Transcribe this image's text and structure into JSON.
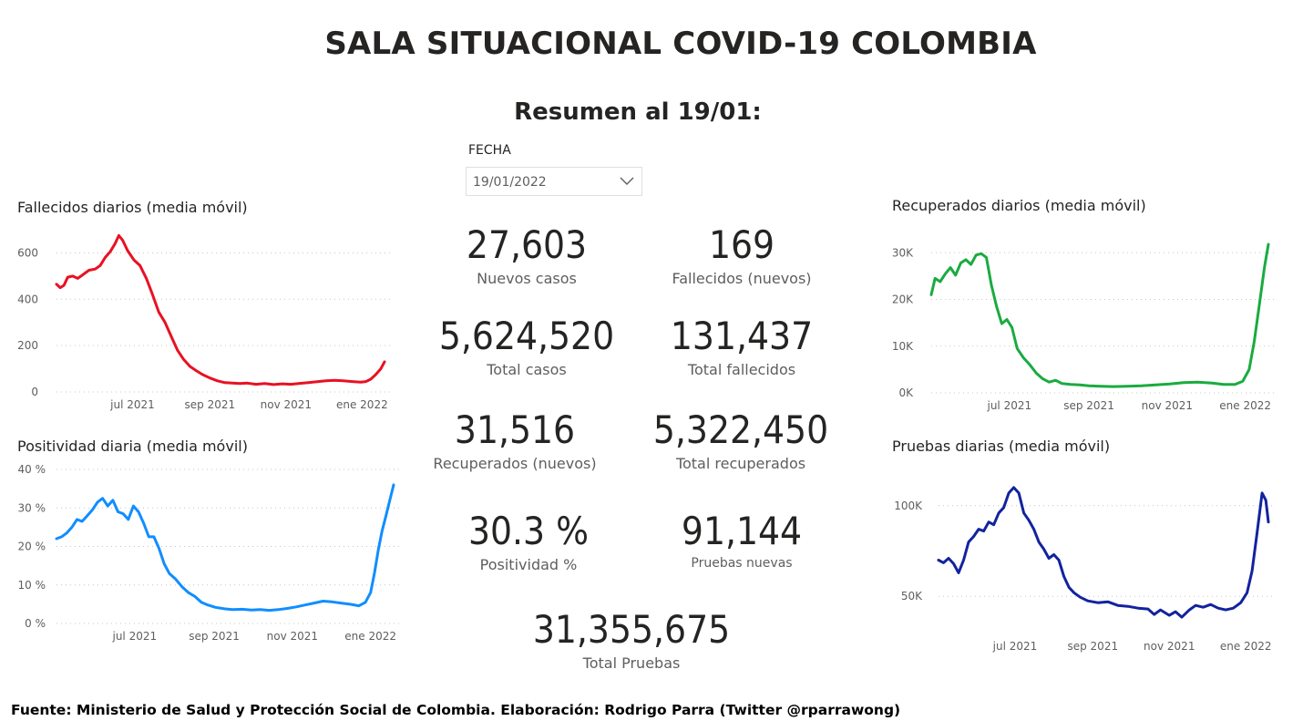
{
  "header": {
    "title": "SALA SITUACIONAL COVID-19 COLOMBIA",
    "subtitle": "Resumen al 19/01:"
  },
  "slicer": {
    "label": "FECHA",
    "value": "19/01/2022"
  },
  "kpis": {
    "nuevos_casos": {
      "value": "27,603",
      "label": "Nuevos casos"
    },
    "fallecidos_nuevos": {
      "value": "169",
      "label": "Fallecidos (nuevos)"
    },
    "total_casos": {
      "value": "5,624,520",
      "label": "Total casos"
    },
    "total_fallecidos": {
      "value": "131,437",
      "label": "Total fallecidos"
    },
    "recuperados_nuevos": {
      "value": "31,516",
      "label": "Recuperados (nuevos)"
    },
    "total_recuperados": {
      "value": "5,322,450",
      "label": "Total recuperados"
    },
    "positividad": {
      "value": "30.3 %",
      "label": "Positividad %"
    },
    "pruebas_nuevas": {
      "value": "91,144",
      "label": "Pruebas nuevas"
    },
    "total_pruebas": {
      "value": "31,355,675",
      "label": "Total Pruebas"
    }
  },
  "footer": "Fuente: Ministerio de Salud y Protección Social de Colombia. Elaboración: Rodrigo Parra (Twitter @rparrawong)",
  "chart_data": [
    {
      "id": "fallecidos",
      "type": "line",
      "title": "Fallecidos diarios (media móvil)",
      "color": "#e81123",
      "ylim": [
        0,
        700
      ],
      "yticks": [
        {
          "v": 0,
          "label": "0"
        },
        {
          "v": 200,
          "label": "200"
        },
        {
          "v": 400,
          "label": "400"
        },
        {
          "v": 600,
          "label": "600"
        }
      ],
      "xlim": [
        "2021-05-01",
        "2022-01-19"
      ],
      "xticks": [
        {
          "date": "2021-07-01",
          "label": "jul 2021"
        },
        {
          "date": "2021-09-01",
          "label": "sep 2021"
        },
        {
          "date": "2021-11-01",
          "label": "nov 2021"
        },
        {
          "date": "2022-01-01",
          "label": "ene 2022"
        }
      ],
      "grid": true,
      "points": [
        [
          "2021-05-01",
          465
        ],
        [
          "2021-05-04",
          450
        ],
        [
          "2021-05-07",
          460
        ],
        [
          "2021-05-10",
          495
        ],
        [
          "2021-05-14",
          500
        ],
        [
          "2021-05-18",
          490
        ],
        [
          "2021-05-22",
          505
        ],
        [
          "2021-05-27",
          525
        ],
        [
          "2021-06-01",
          530
        ],
        [
          "2021-06-05",
          545
        ],
        [
          "2021-06-09",
          580
        ],
        [
          "2021-06-13",
          605
        ],
        [
          "2021-06-17",
          640
        ],
        [
          "2021-06-20",
          675
        ],
        [
          "2021-06-23",
          655
        ],
        [
          "2021-06-27",
          610
        ],
        [
          "2021-07-02",
          570
        ],
        [
          "2021-07-07",
          545
        ],
        [
          "2021-07-12",
          490
        ],
        [
          "2021-07-17",
          420
        ],
        [
          "2021-07-22",
          345
        ],
        [
          "2021-07-27",
          300
        ],
        [
          "2021-08-01",
          240
        ],
        [
          "2021-08-06",
          180
        ],
        [
          "2021-08-11",
          140
        ],
        [
          "2021-08-16",
          110
        ],
        [
          "2021-08-21",
          92
        ],
        [
          "2021-08-26",
          75
        ],
        [
          "2021-09-01",
          60
        ],
        [
          "2021-09-07",
          48
        ],
        [
          "2021-09-13",
          40
        ],
        [
          "2021-09-19",
          38
        ],
        [
          "2021-09-25",
          36
        ],
        [
          "2021-10-01",
          38
        ],
        [
          "2021-10-08",
          33
        ],
        [
          "2021-10-15",
          36
        ],
        [
          "2021-10-22",
          32
        ],
        [
          "2021-10-29",
          35
        ],
        [
          "2021-11-05",
          33
        ],
        [
          "2021-11-12",
          37
        ],
        [
          "2021-11-19",
          40
        ],
        [
          "2021-11-26",
          44
        ],
        [
          "2021-12-03",
          48
        ],
        [
          "2021-12-10",
          50
        ],
        [
          "2021-12-17",
          48
        ],
        [
          "2021-12-24",
          45
        ],
        [
          "2021-12-31",
          42
        ],
        [
          "2022-01-04",
          45
        ],
        [
          "2022-01-08",
          55
        ],
        [
          "2022-01-12",
          75
        ],
        [
          "2022-01-16",
          100
        ],
        [
          "2022-01-19",
          130
        ]
      ]
    },
    {
      "id": "positividad",
      "type": "line",
      "title": "Positividad diaria (media móvil)",
      "color": "#118dff",
      "ylim": [
        0,
        40
      ],
      "yticks": [
        {
          "v": 0,
          "label": "0 %"
        },
        {
          "v": 10,
          "label": "10 %"
        },
        {
          "v": 20,
          "label": "20 %"
        },
        {
          "v": 30,
          "label": "30 %"
        },
        {
          "v": 40,
          "label": "40 %"
        }
      ],
      "xlim": [
        "2021-05-01",
        "2022-01-19"
      ],
      "xticks": [
        {
          "date": "2021-07-01",
          "label": "jul 2021"
        },
        {
          "date": "2021-09-01",
          "label": "sep 2021"
        },
        {
          "date": "2021-11-01",
          "label": "nov 2021"
        },
        {
          "date": "2022-01-01",
          "label": "ene 2022"
        }
      ],
      "grid": true,
      "points": [
        [
          "2021-05-01",
          22
        ],
        [
          "2021-05-05",
          22.5
        ],
        [
          "2021-05-09",
          23.5
        ],
        [
          "2021-05-13",
          25
        ],
        [
          "2021-05-17",
          27
        ],
        [
          "2021-05-21",
          26.5
        ],
        [
          "2021-05-25",
          28
        ],
        [
          "2021-05-29",
          29.5
        ],
        [
          "2021-06-02",
          31.5
        ],
        [
          "2021-06-06",
          32.5
        ],
        [
          "2021-06-10",
          30.5
        ],
        [
          "2021-06-14",
          32
        ],
        [
          "2021-06-18",
          29
        ],
        [
          "2021-06-22",
          28.5
        ],
        [
          "2021-06-26",
          27
        ],
        [
          "2021-06-30",
          30.5
        ],
        [
          "2021-07-04",
          29
        ],
        [
          "2021-07-08",
          26
        ],
        [
          "2021-07-12",
          22.5
        ],
        [
          "2021-07-16",
          22.5
        ],
        [
          "2021-07-20",
          19.5
        ],
        [
          "2021-07-24",
          15.5
        ],
        [
          "2021-07-28",
          13
        ],
        [
          "2021-08-02",
          11.5
        ],
        [
          "2021-08-07",
          9.5
        ],
        [
          "2021-08-12",
          8
        ],
        [
          "2021-08-17",
          7
        ],
        [
          "2021-08-22",
          5.5
        ],
        [
          "2021-08-27",
          4.8
        ],
        [
          "2021-09-02",
          4.2
        ],
        [
          "2021-09-09",
          3.8
        ],
        [
          "2021-09-16",
          3.6
        ],
        [
          "2021-09-23",
          3.7
        ],
        [
          "2021-09-30",
          3.5
        ],
        [
          "2021-10-07",
          3.6
        ],
        [
          "2021-10-14",
          3.4
        ],
        [
          "2021-10-21",
          3.6
        ],
        [
          "2021-10-28",
          3.9
        ],
        [
          "2021-11-04",
          4.3
        ],
        [
          "2021-11-11",
          4.8
        ],
        [
          "2021-11-18",
          5.3
        ],
        [
          "2021-11-25",
          5.8
        ],
        [
          "2021-12-02",
          5.6
        ],
        [
          "2021-12-09",
          5.3
        ],
        [
          "2021-12-16",
          5.0
        ],
        [
          "2021-12-23",
          4.6
        ],
        [
          "2021-12-28",
          5.5
        ],
        [
          "2022-01-01",
          8
        ],
        [
          "2022-01-04",
          13
        ],
        [
          "2022-01-07",
          19
        ],
        [
          "2022-01-10",
          24
        ],
        [
          "2022-01-13",
          28
        ],
        [
          "2022-01-16",
          32
        ],
        [
          "2022-01-19",
          36
        ]
      ]
    },
    {
      "id": "recuperados",
      "type": "line",
      "title": "Recuperados diarios (media móvil)",
      "color": "#1aab40",
      "ylim": [
        0,
        32000
      ],
      "yticks": [
        {
          "v": 0,
          "label": "0K"
        },
        {
          "v": 10000,
          "label": "10K"
        },
        {
          "v": 20000,
          "label": "20K"
        },
        {
          "v": 30000,
          "label": "30K"
        }
      ],
      "xlim": [
        "2021-05-01",
        "2022-01-19"
      ],
      "xticks": [
        {
          "date": "2021-07-01",
          "label": "jul 2021"
        },
        {
          "date": "2021-09-01",
          "label": "sep 2021"
        },
        {
          "date": "2021-11-01",
          "label": "nov 2021"
        },
        {
          "date": "2022-01-01",
          "label": "ene 2022"
        }
      ],
      "grid": true,
      "points": [
        [
          "2021-05-01",
          21000
        ],
        [
          "2021-05-04",
          24500
        ],
        [
          "2021-05-08",
          23800
        ],
        [
          "2021-05-12",
          25500
        ],
        [
          "2021-05-16",
          26800
        ],
        [
          "2021-05-20",
          25200
        ],
        [
          "2021-05-24",
          27800
        ],
        [
          "2021-05-28",
          28500
        ],
        [
          "2021-06-01",
          27500
        ],
        [
          "2021-06-05",
          29500
        ],
        [
          "2021-06-09",
          29800
        ],
        [
          "2021-06-13",
          29000
        ],
        [
          "2021-06-17",
          23000
        ],
        [
          "2021-06-21",
          18500
        ],
        [
          "2021-06-25",
          14800
        ],
        [
          "2021-06-29",
          15700
        ],
        [
          "2021-07-03",
          14000
        ],
        [
          "2021-07-07",
          9500
        ],
        [
          "2021-07-12",
          7500
        ],
        [
          "2021-07-17",
          6000
        ],
        [
          "2021-07-22",
          4200
        ],
        [
          "2021-07-27",
          3000
        ],
        [
          "2021-08-01",
          2300
        ],
        [
          "2021-08-06",
          2700
        ],
        [
          "2021-08-11",
          2000
        ],
        [
          "2021-08-18",
          1800
        ],
        [
          "2021-08-25",
          1700
        ],
        [
          "2021-09-01",
          1500
        ],
        [
          "2021-09-10",
          1400
        ],
        [
          "2021-09-20",
          1350
        ],
        [
          "2021-10-01",
          1400
        ],
        [
          "2021-10-12",
          1500
        ],
        [
          "2021-10-23",
          1700
        ],
        [
          "2021-11-03",
          1900
        ],
        [
          "2021-11-14",
          2200
        ],
        [
          "2021-11-25",
          2300
        ],
        [
          "2021-12-06",
          2100
        ],
        [
          "2021-12-15",
          1800
        ],
        [
          "2021-12-24",
          1800
        ],
        [
          "2021-12-30",
          2500
        ],
        [
          "2022-01-04",
          5000
        ],
        [
          "2022-01-08",
          11000
        ],
        [
          "2022-01-12",
          19000
        ],
        [
          "2022-01-16",
          27000
        ],
        [
          "2022-01-19",
          31800
        ]
      ]
    },
    {
      "id": "pruebas",
      "type": "line",
      "title": "Pruebas diarias (media móvil)",
      "color": "#12239e",
      "ylim": [
        30000,
        118000
      ],
      "yticks": [
        {
          "v": 50000,
          "label": "50K"
        },
        {
          "v": 100000,
          "label": "100K"
        }
      ],
      "xlim": [
        "2021-05-01",
        "2022-01-19"
      ],
      "xticks": [
        {
          "date": "2021-07-01",
          "label": "jul 2021"
        },
        {
          "date": "2021-09-01",
          "label": "sep 2021"
        },
        {
          "date": "2021-11-01",
          "label": "nov 2021"
        },
        {
          "date": "2022-01-01",
          "label": "ene 2022"
        }
      ],
      "grid": true,
      "points": [
        [
          "2021-05-01",
          70000
        ],
        [
          "2021-05-05",
          68500
        ],
        [
          "2021-05-09",
          71000
        ],
        [
          "2021-05-13",
          68000
        ],
        [
          "2021-05-17",
          63000
        ],
        [
          "2021-05-21",
          70000
        ],
        [
          "2021-05-25",
          80000
        ],
        [
          "2021-05-29",
          83000
        ],
        [
          "2021-06-02",
          87000
        ],
        [
          "2021-06-06",
          86000
        ],
        [
          "2021-06-10",
          91000
        ],
        [
          "2021-06-14",
          89500
        ],
        [
          "2021-06-18",
          96000
        ],
        [
          "2021-06-22",
          99000
        ],
        [
          "2021-06-26",
          107000
        ],
        [
          "2021-06-30",
          110000
        ],
        [
          "2021-07-04",
          107000
        ],
        [
          "2021-07-08",
          96000
        ],
        [
          "2021-07-12",
          92000
        ],
        [
          "2021-07-16",
          87000
        ],
        [
          "2021-07-20",
          80000
        ],
        [
          "2021-07-24",
          76000
        ],
        [
          "2021-07-28",
          71000
        ],
        [
          "2021-08-01",
          73000
        ],
        [
          "2021-08-05",
          70000
        ],
        [
          "2021-08-09",
          61000
        ],
        [
          "2021-08-13",
          55000
        ],
        [
          "2021-08-17",
          52000
        ],
        [
          "2021-08-22",
          49500
        ],
        [
          "2021-08-28",
          47500
        ],
        [
          "2021-09-05",
          46500
        ],
        [
          "2021-09-13",
          47000
        ],
        [
          "2021-09-21",
          45000
        ],
        [
          "2021-09-29",
          44500
        ],
        [
          "2021-10-07",
          43500
        ],
        [
          "2021-10-15",
          43000
        ],
        [
          "2021-10-20",
          40000
        ],
        [
          "2021-10-25",
          42500
        ],
        [
          "2021-11-01",
          39500
        ],
        [
          "2021-11-06",
          41500
        ],
        [
          "2021-11-11",
          38500
        ],
        [
          "2021-11-17",
          42500
        ],
        [
          "2021-11-22",
          45000
        ],
        [
          "2021-11-28",
          44000
        ],
        [
          "2021-12-04",
          45500
        ],
        [
          "2021-12-10",
          43500
        ],
        [
          "2021-12-16",
          42500
        ],
        [
          "2021-12-22",
          43500
        ],
        [
          "2021-12-28",
          46500
        ],
        [
          "2022-01-02",
          52000
        ],
        [
          "2022-01-06",
          64000
        ],
        [
          "2022-01-10",
          85000
        ],
        [
          "2022-01-14",
          107000
        ],
        [
          "2022-01-17",
          103000
        ],
        [
          "2022-01-19",
          91000
        ]
      ]
    }
  ]
}
